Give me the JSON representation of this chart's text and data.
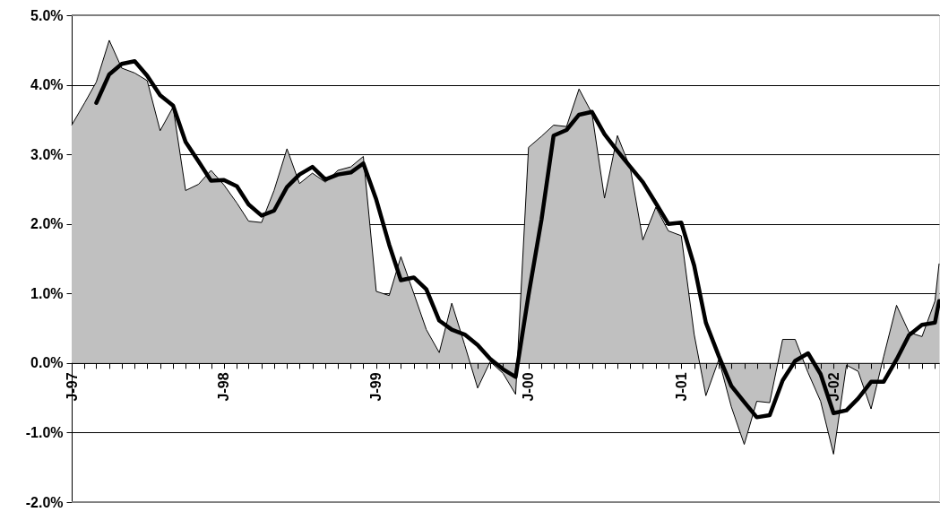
{
  "chart_data": {
    "type": "area",
    "xlim": [
      "1997-01",
      "2002-09-11"
    ],
    "ylim": [
      -2,
      5
    ],
    "xticks": [
      {
        "value": "1997-01",
        "label": "J-97"
      },
      {
        "value": "1997-02",
        "label": null
      },
      {
        "value": "1997-03",
        "label": null
      },
      {
        "value": "1997-04",
        "label": null
      },
      {
        "value": "1997-05",
        "label": null
      },
      {
        "value": "1997-06",
        "label": null
      },
      {
        "value": "1997-07",
        "label": null
      },
      {
        "value": "1997-08",
        "label": null
      },
      {
        "value": "1997-09",
        "label": null
      },
      {
        "value": "1997-10",
        "label": null
      },
      {
        "value": "1997-11",
        "label": null
      },
      {
        "value": "1997-12",
        "label": null
      },
      {
        "value": "1998-01",
        "label": "J-98"
      },
      {
        "value": "1998-02",
        "label": null
      },
      {
        "value": "1998-03",
        "label": null
      },
      {
        "value": "1998-04",
        "label": null
      },
      {
        "value": "1998-05",
        "label": null
      },
      {
        "value": "1998-06",
        "label": null
      },
      {
        "value": "1998-07",
        "label": null
      },
      {
        "value": "1998-08",
        "label": null
      },
      {
        "value": "1998-09",
        "label": null
      },
      {
        "value": "1998-10",
        "label": null
      },
      {
        "value": "1998-11",
        "label": null
      },
      {
        "value": "1998-12",
        "label": null
      },
      {
        "value": "1999-01",
        "label": "J-99"
      },
      {
        "value": "1999-02",
        "label": null
      },
      {
        "value": "1999-03",
        "label": null
      },
      {
        "value": "1999-04",
        "label": null
      },
      {
        "value": "1999-05",
        "label": null
      },
      {
        "value": "1999-06",
        "label": null
      },
      {
        "value": "1999-07",
        "label": null
      },
      {
        "value": "1999-08",
        "label": null
      },
      {
        "value": "1999-09",
        "label": null
      },
      {
        "value": "1999-10",
        "label": null
      },
      {
        "value": "1999-11",
        "label": null
      },
      {
        "value": "1999-12",
        "label": null
      },
      {
        "value": "2000-01",
        "label": "J-00"
      },
      {
        "value": "2000-02",
        "label": null
      },
      {
        "value": "2000-03",
        "label": null
      },
      {
        "value": "2000-04",
        "label": null
      },
      {
        "value": "2000-05",
        "label": null
      },
      {
        "value": "2000-06",
        "label": null
      },
      {
        "value": "2000-07",
        "label": null
      },
      {
        "value": "2000-08",
        "label": null
      },
      {
        "value": "2000-09",
        "label": null
      },
      {
        "value": "2000-10",
        "label": null
      },
      {
        "value": "2000-11",
        "label": null
      },
      {
        "value": "2000-12",
        "label": null
      },
      {
        "value": "2001-01",
        "label": "J-01"
      },
      {
        "value": "2001-02",
        "label": null
      },
      {
        "value": "2001-03",
        "label": null
      },
      {
        "value": "2001-04",
        "label": null
      },
      {
        "value": "2001-05",
        "label": null
      },
      {
        "value": "2001-06",
        "label": null
      },
      {
        "value": "2001-07",
        "label": null
      },
      {
        "value": "2001-08",
        "label": null
      },
      {
        "value": "2001-09",
        "label": null
      },
      {
        "value": "2001-10",
        "label": null
      },
      {
        "value": "2001-11",
        "label": null
      },
      {
        "value": "2001-12",
        "label": null
      },
      {
        "value": "2002-01",
        "label": "J-02"
      },
      {
        "value": "2002-02",
        "label": null
      },
      {
        "value": "2002-03",
        "label": null
      },
      {
        "value": "2002-04",
        "label": null
      },
      {
        "value": "2002-05",
        "label": null
      },
      {
        "value": "2002-06",
        "label": null
      },
      {
        "value": "2002-07",
        "label": null
      },
      {
        "value": "2002-08",
        "label": null
      },
      {
        "value": "2002-09",
        "label": null
      }
    ],
    "yticks": [
      {
        "value": -2,
        "label": "-2.0%"
      },
      {
        "value": -1,
        "label": "-1.0%"
      },
      {
        "value": 0,
        "label": "0.0%"
      },
      {
        "value": 1,
        "label": "1.0%"
      },
      {
        "value": 2,
        "label": "2.0%"
      },
      {
        "value": 3,
        "label": "3.0%"
      },
      {
        "value": 4,
        "label": "4.0%"
      },
      {
        "value": 5,
        "label": "5.0%"
      }
    ],
    "grid": "y",
    "series": [
      {
        "type": "area",
        "color": "#c0c0c0",
        "x": [
          "1997-01",
          "1997-02",
          "1997-03",
          "1997-04",
          "1997-05",
          "1997-06",
          "1997-07",
          "1997-08",
          "1997-09",
          "1997-10",
          "1997-11",
          "1997-12",
          "1998-01",
          "1998-02",
          "1998-03",
          "1998-04",
          "1998-05",
          "1998-06",
          "1998-07",
          "1998-08",
          "1998-09",
          "1998-10",
          "1998-11",
          "1998-12",
          "1999-01",
          "1999-02",
          "1999-03",
          "1999-04",
          "1999-05",
          "1999-06",
          "1999-07",
          "1999-08",
          "1999-09",
          "1999-10",
          "1999-11",
          "1999-12",
          "2000-01",
          "2000-02",
          "2000-03",
          "2000-04",
          "2000-05",
          "2000-06",
          "2000-07",
          "2000-08",
          "2000-09",
          "2000-10",
          "2000-11",
          "2000-12",
          "2001-01",
          "2001-02",
          "2001-03",
          "2001-04",
          "2001-05",
          "2001-06",
          "2001-07",
          "2001-08",
          "2001-09",
          "2001-10",
          "2001-11",
          "2001-12",
          "2002-01",
          "2002-02",
          "2002-03",
          "2002-04",
          "2002-05",
          "2002-06",
          "2002-07",
          "2002-08",
          "2002-09",
          "2002-09-11"
        ],
        "values": [
          3.42,
          3.74,
          4.04,
          4.64,
          4.24,
          4.17,
          4.06,
          3.34,
          3.68,
          2.48,
          2.57,
          2.77,
          2.56,
          2.3,
          2.04,
          2.02,
          2.48,
          3.08,
          2.58,
          2.73,
          2.6,
          2.77,
          2.82,
          2.97,
          1.03,
          0.97,
          1.53,
          1.0,
          0.48,
          0.15,
          0.86,
          0.26,
          -0.36,
          0.02,
          -0.15,
          -0.45,
          3.1,
          3.26,
          3.42,
          3.4,
          3.94,
          3.59,
          2.37,
          3.27,
          2.8,
          1.77,
          2.24,
          1.9,
          1.83,
          0.41,
          -0.47,
          0.05,
          -0.63,
          -1.17,
          -0.55,
          -0.57,
          0.34,
          0.34,
          -0.14,
          -0.55,
          -1.31,
          -0.03,
          -0.12,
          -0.66,
          0.09,
          0.83,
          0.44,
          0.38,
          0.89,
          1.43
        ]
      },
      {
        "type": "line",
        "color": "#000000",
        "x": [
          "1997-03",
          "1997-04",
          "1997-05",
          "1997-06",
          "1997-07",
          "1997-08",
          "1997-09",
          "1997-10",
          "1997-11",
          "1997-12",
          "1998-01",
          "1998-02",
          "1998-03",
          "1998-04",
          "1998-05",
          "1998-06",
          "1998-07",
          "1998-08",
          "1998-09",
          "1998-10",
          "1998-11",
          "1998-12",
          "1999-01",
          "1999-02",
          "1999-03",
          "1999-04",
          "1999-05",
          "1999-06",
          "1999-07",
          "1999-08",
          "1999-09",
          "1999-10",
          "1999-11",
          "1999-12",
          "2000-01",
          "2000-02",
          "2000-03",
          "2000-04",
          "2000-05",
          "2000-06",
          "2000-07",
          "2000-08",
          "2000-09",
          "2000-10",
          "2000-11",
          "2000-12",
          "2001-01",
          "2001-02",
          "2001-03",
          "2001-04",
          "2001-05",
          "2001-06",
          "2001-07",
          "2001-08",
          "2001-09",
          "2001-10",
          "2001-11",
          "2001-12",
          "2002-01",
          "2002-02",
          "2002-03",
          "2002-04",
          "2002-05",
          "2002-06",
          "2002-07",
          "2002-08",
          "2002-09",
          "2002-09-11"
        ],
        "values": [
          3.74,
          4.15,
          4.3,
          4.34,
          4.13,
          3.85,
          3.7,
          3.18,
          2.9,
          2.62,
          2.63,
          2.54,
          2.28,
          2.12,
          2.19,
          2.53,
          2.71,
          2.82,
          2.64,
          2.71,
          2.74,
          2.87,
          2.35,
          1.7,
          1.19,
          1.23,
          1.06,
          0.61,
          0.48,
          0.41,
          0.26,
          0.06,
          -0.09,
          -0.2,
          0.98,
          2.06,
          3.27,
          3.35,
          3.57,
          3.61,
          3.29,
          3.05,
          2.82,
          2.6,
          2.3,
          2.0,
          2.02,
          1.4,
          0.58,
          0.1,
          -0.33,
          -0.56,
          -0.78,
          -0.75,
          -0.25,
          0.03,
          0.14,
          -0.16,
          -0.72,
          -0.68,
          -0.51,
          -0.27,
          -0.27,
          0.05,
          0.4,
          0.55,
          0.58,
          0.89
        ]
      }
    ]
  }
}
